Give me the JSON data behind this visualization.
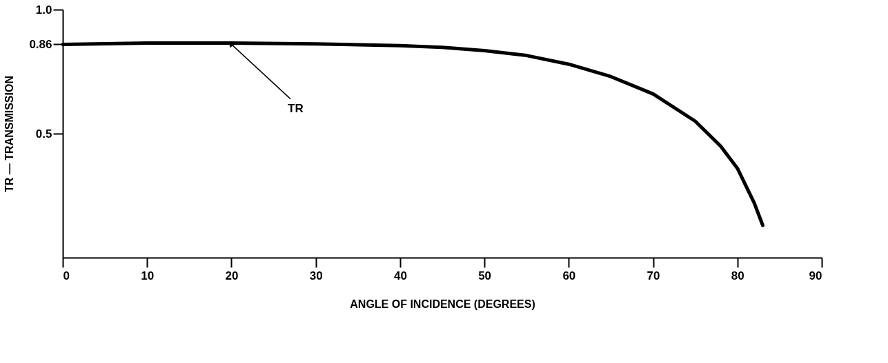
{
  "chart_data": {
    "type": "line",
    "xlabel": "ANGLE OF INCIDENCE (DEGREES)",
    "ylabel": "TR — TRANSMISSION",
    "x": [
      0,
      10,
      20,
      30,
      40,
      45,
      50,
      55,
      60,
      65,
      70,
      75,
      78,
      80,
      82,
      83
    ],
    "series": [
      {
        "color": "#000000",
        "values": [
          0.86,
          0.865,
          0.865,
          0.862,
          0.855,
          0.848,
          0.835,
          0.815,
          0.78,
          0.73,
          0.66,
          0.55,
          0.45,
          0.36,
          0.22,
          0.13
        ]
      }
    ],
    "xlim": [
      0,
      90
    ],
    "xticks": [
      0,
      10,
      20,
      30,
      40,
      50,
      60,
      70,
      80,
      90
    ],
    "ylim": [
      0,
      1.0
    ],
    "yticks": [
      0.5,
      {
        "value": 0.86,
        "label": "0.86"
      },
      {
        "value": 1.0,
        "label": "1.0"
      }
    ],
    "annotations": [
      {
        "text": "TR",
        "x": 20,
        "y": 0.86
      }
    ],
    "grid": false,
    "marker": "none",
    "line_style": "solid"
  }
}
